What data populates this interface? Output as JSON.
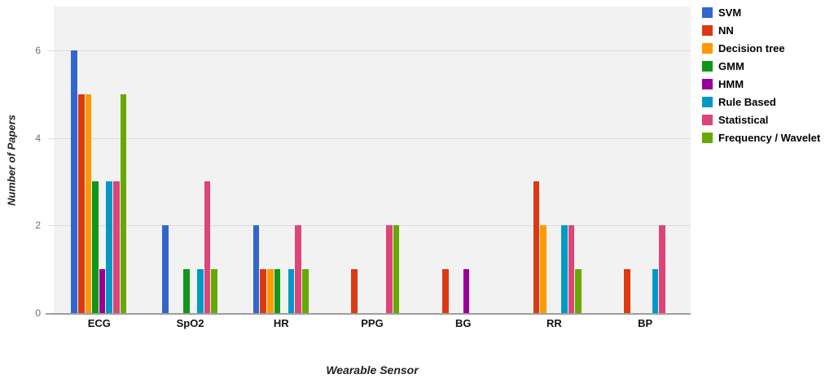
{
  "chart_data": {
    "type": "bar",
    "title": "",
    "xlabel": "Wearable Sensor",
    "ylabel": "Number of Papers",
    "categories": [
      "ECG",
      "SpO2",
      "HR",
      "PPG",
      "BG",
      "RR",
      "BP"
    ],
    "series": [
      {
        "name": "SVM",
        "color": "#3366CC",
        "values": [
          6,
          2,
          2,
          0,
          0,
          0,
          0
        ]
      },
      {
        "name": "NN",
        "color": "#DC3912",
        "values": [
          5,
          0,
          1,
          1,
          1,
          3,
          1
        ]
      },
      {
        "name": "Decision tree",
        "color": "#FF9900",
        "values": [
          5,
          0,
          1,
          0,
          0,
          2,
          0
        ]
      },
      {
        "name": "GMM",
        "color": "#109618",
        "values": [
          3,
          1,
          1,
          0,
          0,
          0,
          0
        ]
      },
      {
        "name": "HMM",
        "color": "#990099",
        "values": [
          1,
          0,
          0,
          0,
          1,
          0,
          0
        ]
      },
      {
        "name": "Rule Based",
        "color": "#0099C6",
        "values": [
          3,
          1,
          1,
          0,
          0,
          2,
          1
        ]
      },
      {
        "name": "Statistical",
        "color": "#DD4477",
        "values": [
          3,
          3,
          2,
          2,
          0,
          2,
          2
        ]
      },
      {
        "name": "Frequency / Wavelet",
        "color": "#66AA00",
        "values": [
          5,
          1,
          1,
          2,
          0,
          1,
          0
        ]
      }
    ],
    "ylim": [
      0,
      7
    ],
    "yticks": [
      0,
      2,
      4,
      6
    ],
    "grid": true,
    "legend_position": "right",
    "plot_background": "#f2f2f2",
    "gridline_color": "#dcdcdc",
    "baseline_color": "#9e9e9e"
  }
}
